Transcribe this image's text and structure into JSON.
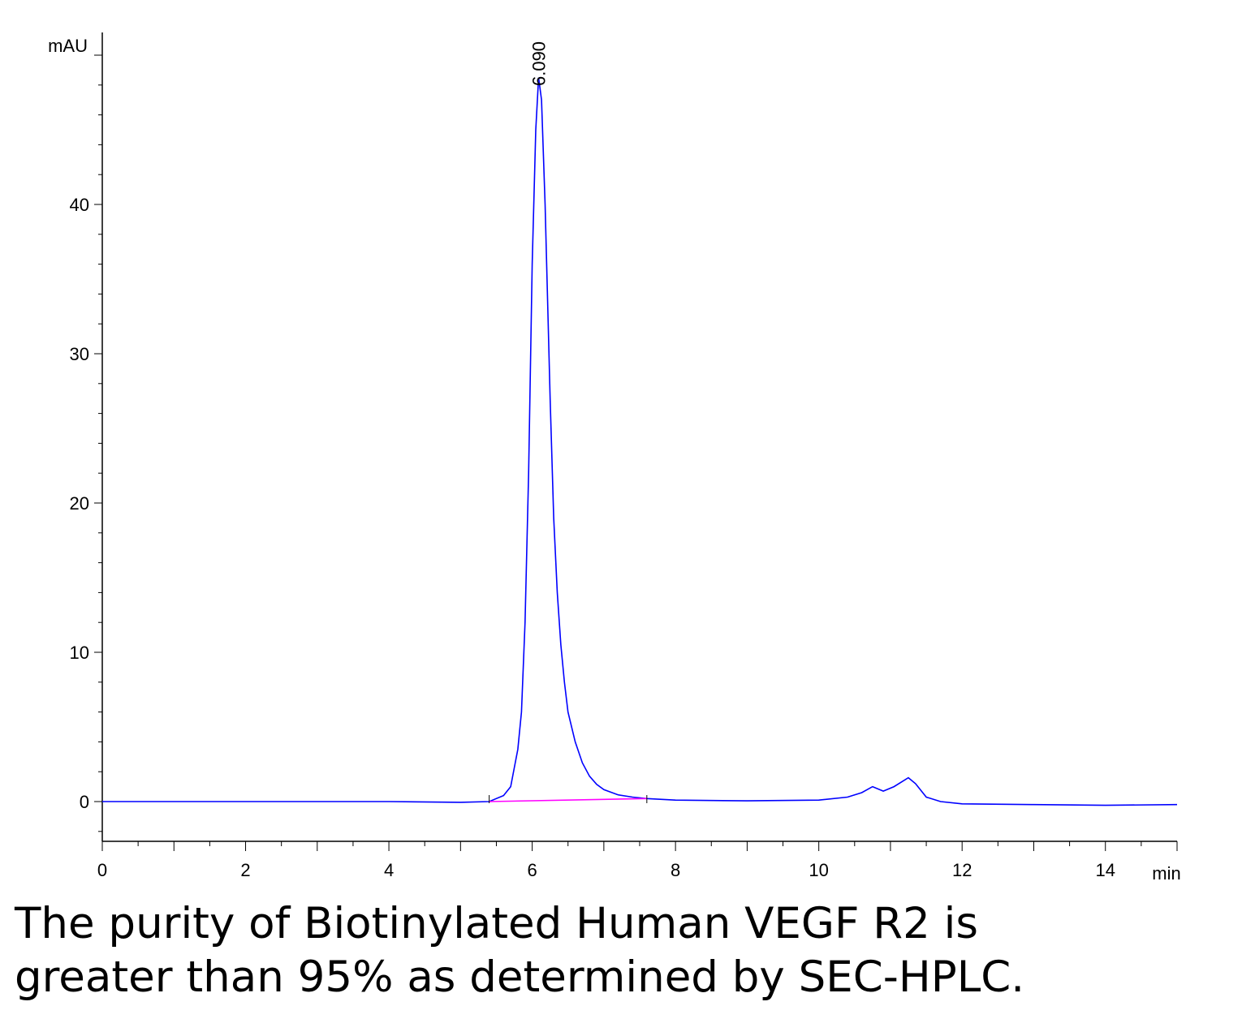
{
  "chart_data": {
    "type": "line",
    "ylabel": "mAU",
    "xlabel": "min",
    "xlim": [
      0,
      15
    ],
    "ylim": [
      -2.7,
      51.5
    ],
    "x_ticks": [
      "0",
      "2",
      "4",
      "6",
      "8",
      "10",
      "12",
      "14"
    ],
    "y_ticks": [
      "0",
      "10",
      "20",
      "30",
      "40"
    ],
    "peak_label": "6.090",
    "series": [
      {
        "color": "#0000ff",
        "x": [
          0,
          1,
          2,
          3,
          4,
          5,
          5.4,
          5.6,
          5.7,
          5.8,
          5.85,
          5.9,
          5.95,
          6.0,
          6.05,
          6.09,
          6.13,
          6.18,
          6.25,
          6.3,
          6.35,
          6.4,
          6.45,
          6.5,
          6.6,
          6.7,
          6.8,
          6.9,
          7.0,
          7.2,
          7.4,
          7.6,
          8.0,
          9.0,
          10.0,
          10.4,
          10.6,
          10.75,
          10.9,
          11.05,
          11.25,
          11.35,
          11.5,
          11.7,
          12.0,
          13.0,
          14.0,
          15.0
        ],
        "y": [
          0.0,
          0.0,
          0.0,
          0.0,
          0.0,
          -0.05,
          0.0,
          0.4,
          1.0,
          3.5,
          6.0,
          12.0,
          22.0,
          36.0,
          45.0,
          48.5,
          47.0,
          40.0,
          27.0,
          19.0,
          14.0,
          10.5,
          8.0,
          6.0,
          4.0,
          2.6,
          1.7,
          1.15,
          0.8,
          0.45,
          0.3,
          0.2,
          0.1,
          0.05,
          0.1,
          0.3,
          0.6,
          1.0,
          0.7,
          1.0,
          1.6,
          1.2,
          0.3,
          0.0,
          -0.15,
          -0.2,
          -0.25,
          -0.2
        ]
      },
      {
        "color": "#ff00ff",
        "x": [
          5.4,
          7.6
        ],
        "y": [
          0.0,
          0.2
        ]
      }
    ],
    "baseline_markers": [
      5.4,
      7.6
    ]
  },
  "caption": {
    "line1": "The purity of Biotinylated Human VEGF R2 is",
    "line2": "greater than 95% as determined by SEC-HPLC."
  }
}
